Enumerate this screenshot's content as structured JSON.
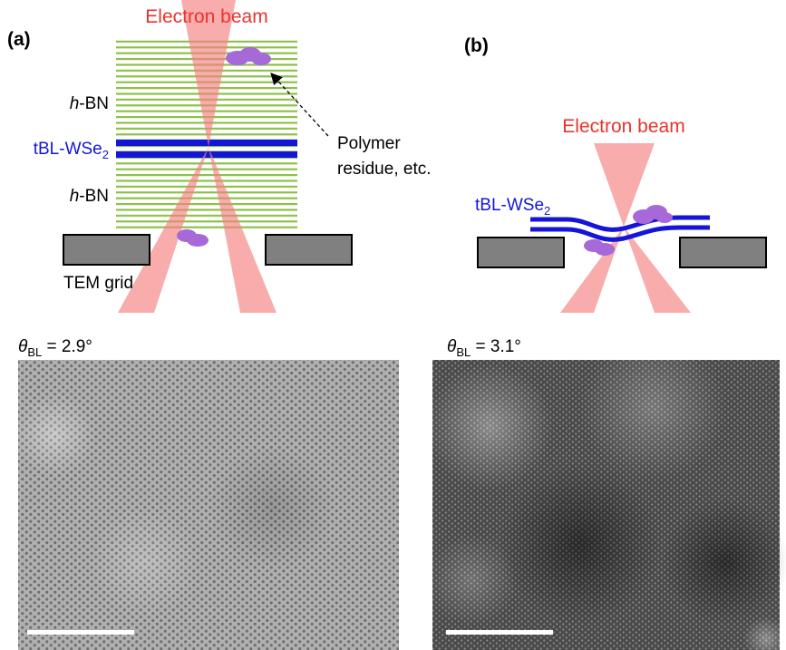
{
  "panel_a": {
    "label": "(a)",
    "beam_label": "Electron beam",
    "top_layer": {
      "italic": "h",
      "rest": "-BN"
    },
    "bilayer": {
      "main": "tBL-WSe",
      "sub": "2"
    },
    "bottom_layer": {
      "italic": "h",
      "rest": "-BN"
    },
    "annotation": [
      "Polymer",
      "residue, etc."
    ],
    "grid_label": "TEM grid",
    "angle": {
      "symbol": "θ",
      "sub": "BL",
      "rest": " = 2.9°"
    }
  },
  "panel_b": {
    "label": "(b)",
    "beam_label": "Electron beam",
    "bilayer": {
      "main": "tBL-WSe",
      "sub": "2"
    },
    "angle": {
      "symbol": "θ",
      "sub": "BL",
      "rest": " = 3.1°"
    }
  }
}
